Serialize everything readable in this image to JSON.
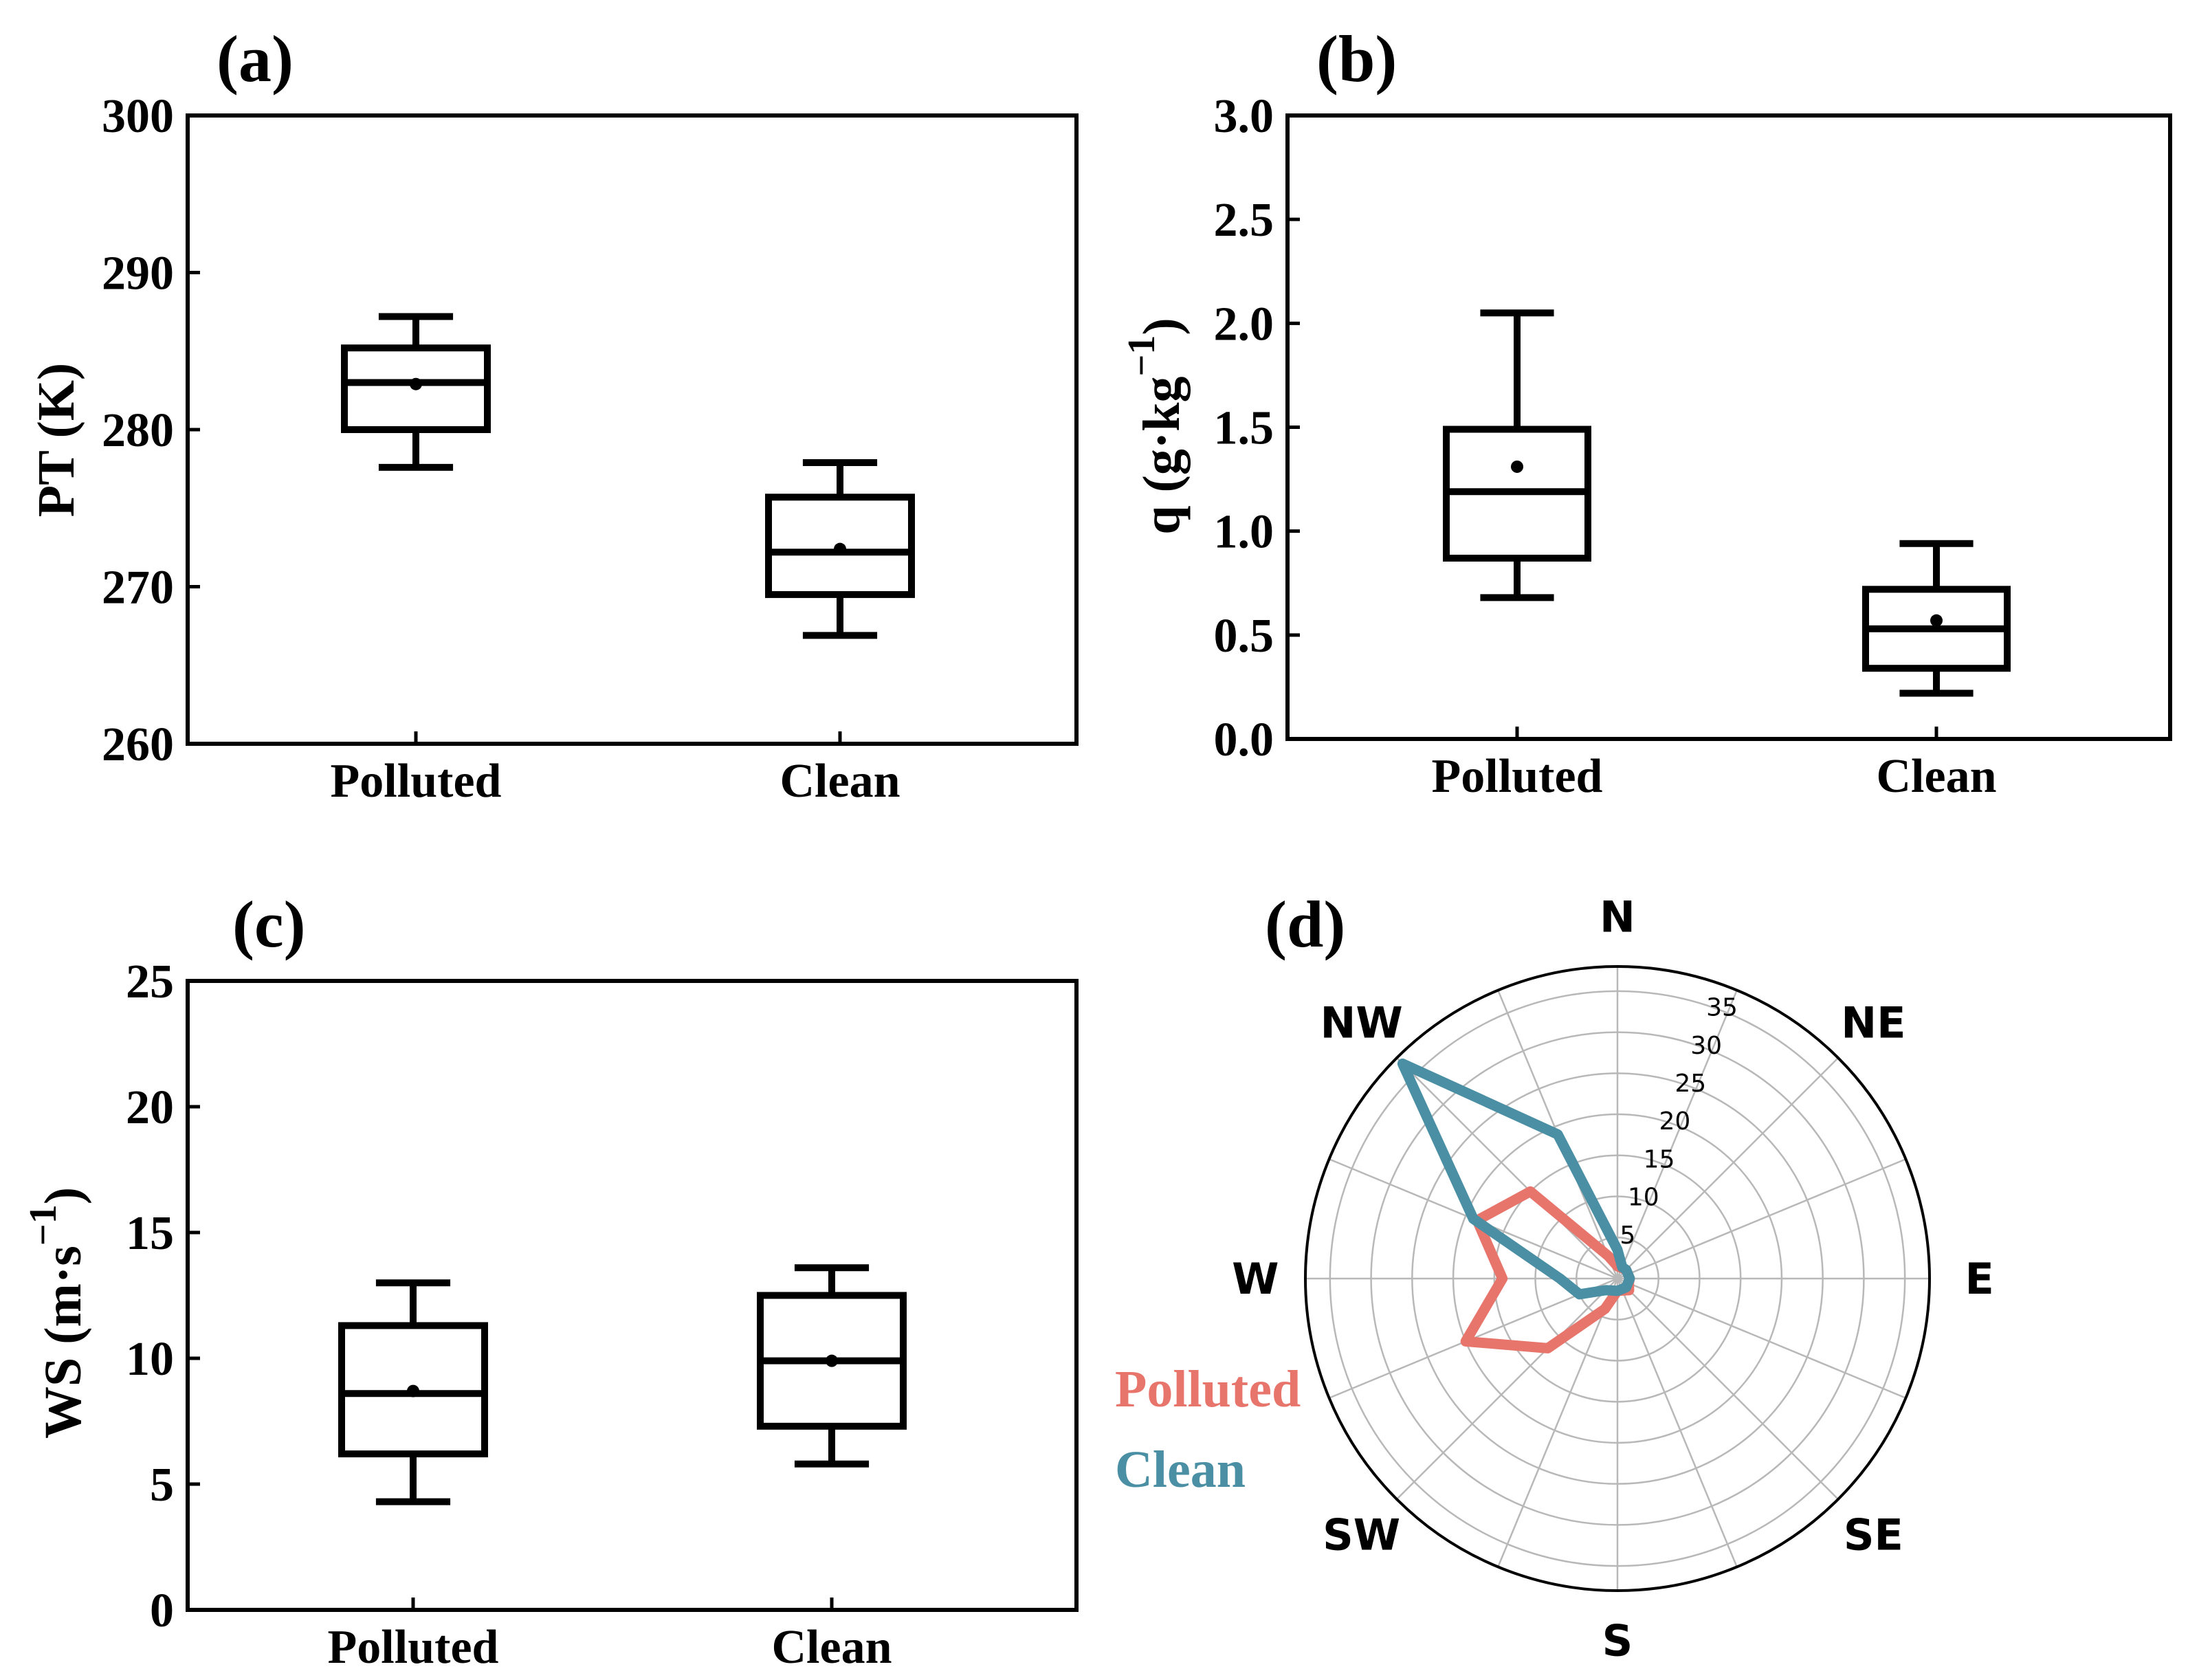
{
  "colors": {
    "axis": "#000000",
    "polluted": "#E8756B",
    "clean": "#4A8FA3",
    "grid": "#B8B8B8"
  },
  "chart_data": [
    {
      "panel": "(a)",
      "type": "box",
      "ylabel": "PT (K)",
      "ylim": [
        260,
        300
      ],
      "yticks": [
        "260",
        "270",
        "280",
        "290",
        "300"
      ],
      "categories": [
        "Polluted",
        "Clean"
      ],
      "boxes": [
        {
          "name": "Polluted",
          "whisker_low": 277.6,
          "q1": 280.0,
          "median": 283.0,
          "q3": 285.2,
          "whisker_high": 287.2,
          "mean": 282.9
        },
        {
          "name": "Clean",
          "whisker_low": 266.9,
          "q1": 269.5,
          "median": 272.2,
          "q3": 275.7,
          "whisker_high": 277.9,
          "mean": 272.4
        }
      ]
    },
    {
      "panel": "(b)",
      "type": "box",
      "ylabel_main": "q (g·kg",
      "ylabel_sup": "−1",
      "ylabel_close": ")",
      "ylim": [
        0.0,
        3.0
      ],
      "yticks": [
        "0.0",
        "0.5",
        "1.0",
        "1.5",
        "2.0",
        "2.5",
        "3.0"
      ],
      "categories": [
        "Polluted",
        "Clean"
      ],
      "boxes": [
        {
          "name": "Polluted",
          "whisker_low": 0.68,
          "q1": 0.87,
          "median": 1.19,
          "q3": 1.49,
          "whisker_high": 2.05,
          "mean": 1.31
        },
        {
          "name": "Clean",
          "whisker_low": 0.22,
          "q1": 0.34,
          "median": 0.53,
          "q3": 0.72,
          "whisker_high": 0.94,
          "mean": 0.57
        }
      ]
    },
    {
      "panel": "(c)",
      "type": "box",
      "ylabel_main": "WS (m·s",
      "ylabel_sup": "−1",
      "ylabel_close": ")",
      "ylim": [
        0,
        25
      ],
      "yticks": [
        "0",
        "5",
        "10",
        "15",
        "20",
        "25"
      ],
      "categories": [
        "Polluted",
        "Clean"
      ],
      "boxes": [
        {
          "name": "Polluted",
          "whisker_low": 4.3,
          "q1": 6.2,
          "median": 8.6,
          "q3": 11.3,
          "whisker_high": 13.0,
          "mean": 8.7
        },
        {
          "name": "Clean",
          "whisker_low": 5.8,
          "q1": 7.3,
          "median": 9.9,
          "q3": 12.5,
          "whisker_high": 13.6,
          "mean": 9.9
        }
      ]
    },
    {
      "panel": "(d)",
      "type": "polar",
      "rmax": 38,
      "rings": [
        5,
        10,
        15,
        20,
        25,
        30,
        35
      ],
      "ring_labels": [
        "5",
        "10",
        "15",
        "20",
        "25",
        "30",
        "35"
      ],
      "directions": [
        "N",
        "NE",
        "E",
        "SE",
        "S",
        "SW",
        "W",
        "NW"
      ],
      "legend": [
        "Polluted",
        "Clean"
      ],
      "series": [
        {
          "name": "Polluted",
          "points": [
            [
              0,
              1.5
            ],
            [
              45,
              1.5
            ],
            [
              90,
              1.5
            ],
            [
              112.5,
              1.5
            ],
            [
              135,
              2
            ],
            [
              180,
              1.5
            ],
            [
              202.5,
              4
            ],
            [
              225,
              12
            ],
            [
              247.5,
              20
            ],
            [
              270,
              14
            ],
            [
              292.5,
              18.5
            ],
            [
              315,
              15
            ],
            [
              337.5,
              3
            ]
          ]
        },
        {
          "name": "Clean",
          "points": [
            [
              0,
              3.5
            ],
            [
              22.5,
              1.5
            ],
            [
              45,
              1.5
            ],
            [
              90,
              1.5
            ],
            [
              135,
              1.5
            ],
            [
              180,
              1.5
            ],
            [
              225,
              2
            ],
            [
              247.5,
              5
            ],
            [
              270,
              7
            ],
            [
              292.5,
              19
            ],
            [
              315,
              37
            ],
            [
              337.5,
              19
            ],
            [
              360,
              3.5
            ]
          ]
        }
      ]
    }
  ]
}
